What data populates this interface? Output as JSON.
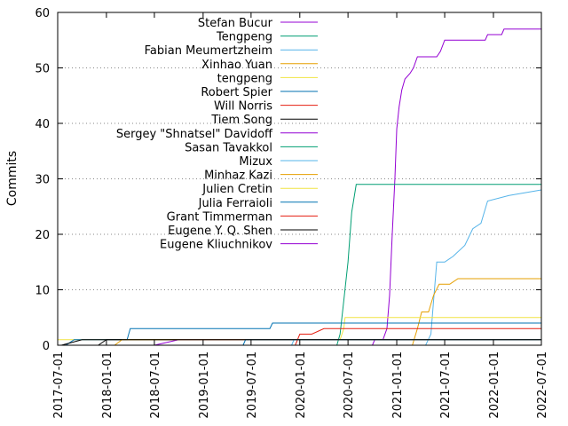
{
  "chart_data": {
    "type": "line",
    "title": "",
    "xlabel": "",
    "ylabel": "Commits",
    "xlim": [
      "2017-07-01",
      "2022-07-01"
    ],
    "ylim": [
      0,
      60
    ],
    "x_ticks": [
      "2017-07-01",
      "2018-01-01",
      "2018-07-01",
      "2019-01-01",
      "2019-07-01",
      "2020-01-01",
      "2020-07-01",
      "2021-01-01",
      "2021-07-01",
      "2022-01-01",
      "2022-07-01"
    ],
    "y_ticks": [
      0,
      10,
      20,
      30,
      40,
      50,
      60
    ],
    "grid": "horizontal dotted",
    "legend_position": "top-left",
    "series": [
      {
        "name": "Stefan Bucur",
        "color": "#9400d3",
        "points": [
          [
            "2020-10-01",
            0
          ],
          [
            "2020-10-10",
            1
          ],
          [
            "2020-11-10",
            1
          ],
          [
            "2020-11-25",
            3
          ],
          [
            "2020-12-05",
            9
          ],
          [
            "2020-12-15",
            20
          ],
          [
            "2020-12-25",
            30
          ],
          [
            "2021-01-01",
            39
          ],
          [
            "2021-01-10",
            43
          ],
          [
            "2021-01-20",
            46
          ],
          [
            "2021-02-01",
            48
          ],
          [
            "2021-02-20",
            49
          ],
          [
            "2021-03-05",
            50
          ],
          [
            "2021-03-20",
            52
          ],
          [
            "2021-06-01",
            52
          ],
          [
            "2021-06-15",
            53
          ],
          [
            "2021-07-01",
            55
          ],
          [
            "2021-12-01",
            55
          ],
          [
            "2021-12-10",
            56
          ],
          [
            "2022-02-01",
            56
          ],
          [
            "2022-02-10",
            57
          ],
          [
            "2022-07-01",
            57
          ]
        ]
      },
      {
        "name": "Tengpeng",
        "color": "#009e73",
        "points": [
          [
            "2020-05-20",
            0
          ],
          [
            "2020-06-01",
            2
          ],
          [
            "2020-06-15",
            8
          ],
          [
            "2020-07-01",
            15
          ],
          [
            "2020-07-15",
            24
          ],
          [
            "2020-08-01",
            29
          ],
          [
            "2022-07-01",
            29
          ]
        ]
      },
      {
        "name": "Fabian Meumertzheim",
        "color": "#56b4e9",
        "points": [
          [
            "2021-04-20",
            0
          ],
          [
            "2021-05-10",
            2
          ],
          [
            "2021-05-20",
            8
          ],
          [
            "2021-06-01",
            15
          ],
          [
            "2021-07-01",
            15
          ],
          [
            "2021-08-01",
            16
          ],
          [
            "2021-09-15",
            18
          ],
          [
            "2021-10-15",
            21
          ],
          [
            "2021-11-15",
            22
          ],
          [
            "2021-12-10",
            26
          ],
          [
            "2022-03-01",
            27
          ],
          [
            "2022-07-01",
            28
          ]
        ]
      },
      {
        "name": "Xinhao Yuan",
        "color": "#e69f00",
        "points": [
          [
            "2021-03-01",
            0
          ],
          [
            "2021-03-20",
            3
          ],
          [
            "2021-04-05",
            6
          ],
          [
            "2021-05-01",
            6
          ],
          [
            "2021-05-20",
            9
          ],
          [
            "2021-06-10",
            11
          ],
          [
            "2021-07-20",
            11
          ],
          [
            "2021-08-20",
            12
          ],
          [
            "2022-07-01",
            12
          ]
        ]
      },
      {
        "name": "tengpeng",
        "color": "#f0e442",
        "points": [
          [
            "2017-07-01",
            1
          ],
          [
            "2018-01-01",
            1
          ],
          [
            "2018-03-15",
            1
          ],
          [
            "2018-03-15",
            1
          ],
          [
            "2020-06-01",
            1
          ],
          [
            "2020-06-15",
            3
          ],
          [
            "2020-06-20",
            5
          ],
          [
            "2022-07-01",
            5
          ]
        ]
      },
      {
        "name": "Robert Spier",
        "color": "#0072b2",
        "points": [
          [
            "2017-08-01",
            0
          ],
          [
            "2017-09-01",
            1
          ],
          [
            "2018-03-20",
            1
          ],
          [
            "2018-04-01",
            3
          ],
          [
            "2019-09-10",
            3
          ],
          [
            "2019-09-20",
            4
          ],
          [
            "2022-07-01",
            4
          ]
        ]
      },
      {
        "name": "Will Norris",
        "color": "#e51e10",
        "points": [
          [
            "2019-12-15",
            0
          ],
          [
            "2020-01-01",
            2
          ],
          [
            "2020-02-15",
            2
          ],
          [
            "2020-04-01",
            3
          ],
          [
            "2022-07-01",
            3
          ]
        ]
      },
      {
        "name": "Tiem Song",
        "color": "#000000",
        "points": [
          [
            "2017-07-15",
            0
          ],
          [
            "2017-10-01",
            1
          ],
          [
            "2018-07-01",
            1
          ],
          [
            "2018-07-15",
            1
          ],
          [
            "2019-12-01",
            1
          ],
          [
            "2019-12-15",
            1
          ],
          [
            "2022-07-01",
            1
          ]
        ]
      },
      {
        "name": "Sergey \"Shnatsel\" Davidoff",
        "color": "#9400d3",
        "points": [
          [
            "2018-07-01",
            0
          ],
          [
            "2018-10-01",
            1
          ],
          [
            "2019-01-01",
            1
          ],
          [
            "2022-07-01",
            1
          ]
        ]
      },
      {
        "name": "Sasan Tavakkol",
        "color": "#009e73",
        "points": [
          [
            "2019-01-01",
            0
          ],
          [
            "2019-03-01",
            0
          ],
          [
            "2022-07-01",
            0
          ]
        ]
      },
      {
        "name": "Mizux",
        "color": "#56b4e9",
        "points": [
          [
            "2019-12-01",
            0
          ],
          [
            "2019-12-10",
            1
          ],
          [
            "2022-07-01",
            1
          ]
        ]
      },
      {
        "name": "Minhaz Kazi",
        "color": "#e69f00",
        "points": [
          [
            "2018-02-01",
            0
          ],
          [
            "2018-03-01",
            1
          ],
          [
            "2022-07-01",
            1
          ]
        ]
      },
      {
        "name": "Julien Cretin",
        "color": "#f0e442",
        "points": [
          [
            "2019-09-01",
            0
          ],
          [
            "2019-09-10",
            0
          ],
          [
            "2022-07-01",
            0
          ]
        ]
      },
      {
        "name": "Julia Ferraioli",
        "color": "#0072b2",
        "points": [
          [
            "2019-06-01",
            0
          ],
          [
            "2019-06-10",
            1
          ],
          [
            "2022-07-01",
            1
          ]
        ]
      },
      {
        "name": "Grant Timmerman",
        "color": "#e51e10",
        "points": [
          [
            "2018-01-01",
            0
          ],
          [
            "2018-01-15",
            0
          ],
          [
            "2022-07-01",
            0
          ]
        ]
      },
      {
        "name": "Eugene Y. Q. Shen",
        "color": "#000000",
        "points": [
          [
            "2017-12-01",
            0
          ],
          [
            "2018-01-01",
            1
          ],
          [
            "2022-07-01",
            1
          ]
        ]
      },
      {
        "name": "Eugene Kliuchnikov",
        "color": "#9400d3",
        "points": [
          [
            "2018-06-01",
            0
          ],
          [
            "2018-06-10",
            0
          ],
          [
            "2022-07-01",
            0
          ]
        ]
      }
    ]
  }
}
